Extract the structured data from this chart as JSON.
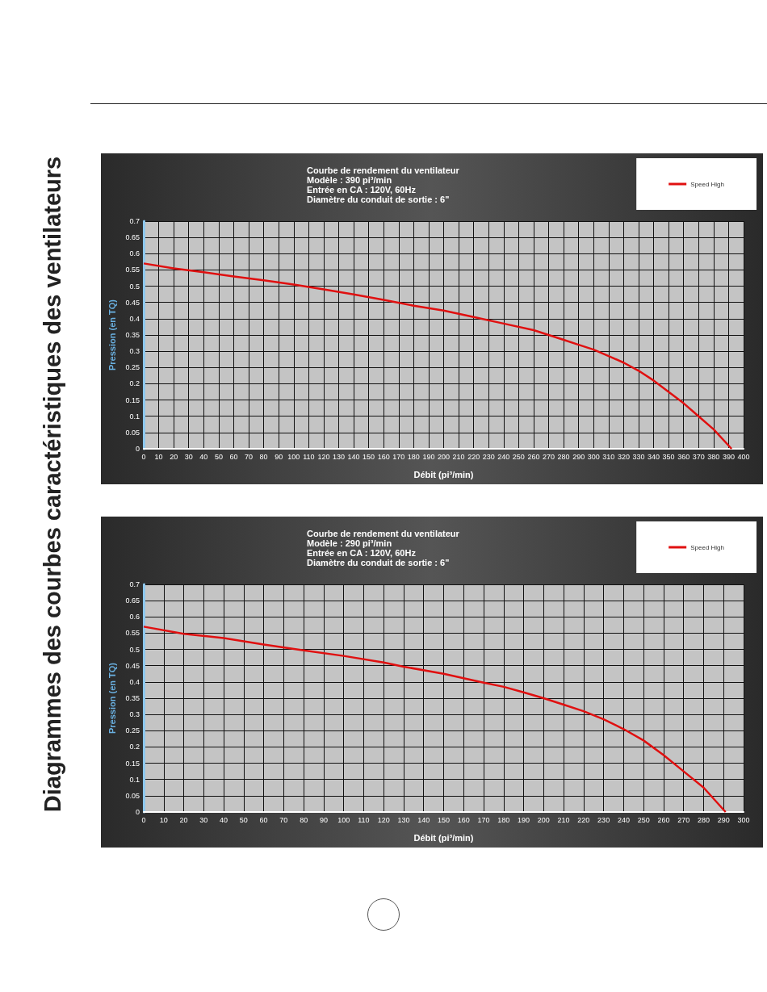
{
  "chart_data": [
    {
      "type": "line",
      "title": "Courbe de rendement du ventilateur",
      "subtitle": "Modèle : 390 pi³/min\nEntrée en CA : 120V, 60Hz\nDiamètre du conduit de sortie : 6\"",
      "xlabel": "Débit (pi³/min)",
      "ylabel": "Pression (en TQ)",
      "annotations": [
        "Diagrammes des courbes caractéristiques des ventilateurs"
      ],
      "series": [
        {
          "name": "Speed High",
          "color": "#e01010",
          "x": [
            0,
            20,
            40,
            60,
            80,
            100,
            120,
            140,
            160,
            180,
            200,
            220,
            240,
            260,
            270,
            280,
            290,
            300,
            310,
            320,
            330,
            340,
            350,
            360,
            370,
            380,
            392
          ],
          "values": [
            0.57,
            0.555,
            0.543,
            0.53,
            0.518,
            0.505,
            0.49,
            0.475,
            0.458,
            0.44,
            0.425,
            0.405,
            0.385,
            0.365,
            0.35,
            0.335,
            0.32,
            0.305,
            0.285,
            0.265,
            0.24,
            0.21,
            0.175,
            0.14,
            0.1,
            0.06,
            0
          ]
        }
      ],
      "xlim": [
        0,
        400
      ],
      "xticks": [
        0,
        10,
        20,
        30,
        40,
        50,
        60,
        70,
        80,
        90,
        100,
        110,
        120,
        130,
        140,
        150,
        160,
        170,
        180,
        190,
        200,
        210,
        220,
        230,
        240,
        250,
        260,
        270,
        280,
        290,
        300,
        310,
        320,
        330,
        340,
        350,
        360,
        370,
        380,
        390,
        400
      ],
      "ylim": [
        0,
        0.7
      ],
      "yticks": [
        0,
        0.05,
        0.1,
        0.15,
        0.2,
        0.25,
        0.3,
        0.35,
        0.4,
        0.45,
        0.5,
        0.55,
        0.6,
        0.65,
        0.7
      ],
      "grid": true,
      "legend": "top right",
      "marker": "none",
      "line_style": "solid"
    },
    {
      "type": "line",
      "title": "Courbe de rendement du ventilateur",
      "subtitle": "Modèle : 290 pi³/min\nEntrée en CA : 120V, 60Hz\nDiamètre du conduit de sortie : 6\"",
      "xlabel": "Débit (pi³/min)",
      "ylabel": "Pression (en TQ)",
      "series": [
        {
          "name": "Speed High",
          "color": "#e01010",
          "x": [
            0,
            20,
            40,
            60,
            80,
            100,
            120,
            130,
            150,
            170,
            180,
            190,
            200,
            210,
            220,
            230,
            240,
            250,
            260,
            270,
            280,
            291
          ],
          "values": [
            0.57,
            0.548,
            0.535,
            0.515,
            0.497,
            0.48,
            0.46,
            0.447,
            0.425,
            0.398,
            0.385,
            0.368,
            0.35,
            0.33,
            0.31,
            0.285,
            0.255,
            0.22,
            0.175,
            0.125,
            0.075,
            0
          ]
        }
      ],
      "xlim": [
        0,
        300
      ],
      "xticks": [
        0,
        10,
        20,
        30,
        40,
        50,
        60,
        70,
        80,
        90,
        100,
        110,
        120,
        130,
        140,
        150,
        160,
        170,
        180,
        190,
        200,
        210,
        220,
        230,
        240,
        250,
        260,
        270,
        280,
        290,
        300
      ],
      "ylim": [
        0,
        0.7
      ],
      "yticks": [
        0,
        0.05,
        0.1,
        0.15,
        0.2,
        0.25,
        0.3,
        0.35,
        0.4,
        0.45,
        0.5,
        0.55,
        0.6,
        0.65,
        0.7
      ],
      "grid": true,
      "legend": "top right",
      "marker": "none",
      "line_style": "solid"
    }
  ]
}
